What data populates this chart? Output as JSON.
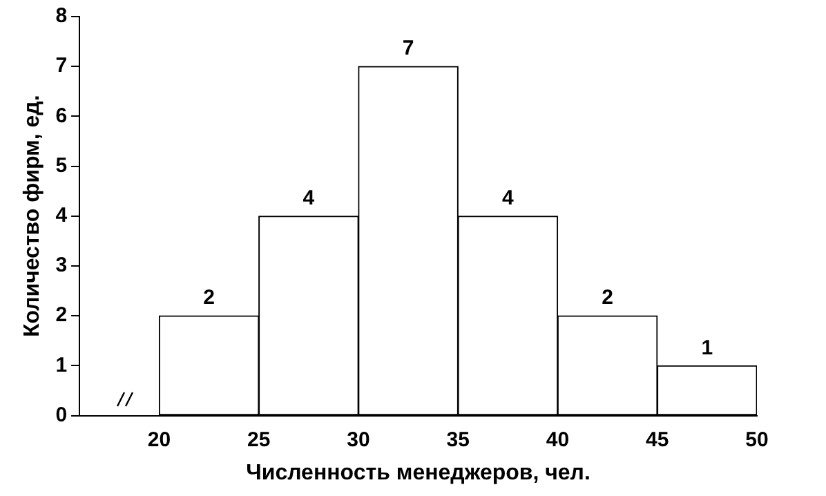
{
  "chart_data": {
    "type": "histogram",
    "xlabel": "Численность менеджеров, чел.",
    "ylabel": "Количество фирм, ед.",
    "bins": [
      20,
      25,
      30,
      35,
      40,
      45,
      50
    ],
    "values": [
      2,
      4,
      7,
      4,
      2,
      1
    ],
    "color": "#ffffff",
    "xlim": [
      16,
      50
    ],
    "xticks": [
      20,
      25,
      30,
      35,
      40,
      45,
      50
    ],
    "ylim": [
      0,
      8
    ],
    "yticks": [
      0,
      1,
      2,
      3,
      4,
      5,
      6,
      7,
      8
    ],
    "grid": false,
    "legend": false,
    "data_labels": true
  }
}
